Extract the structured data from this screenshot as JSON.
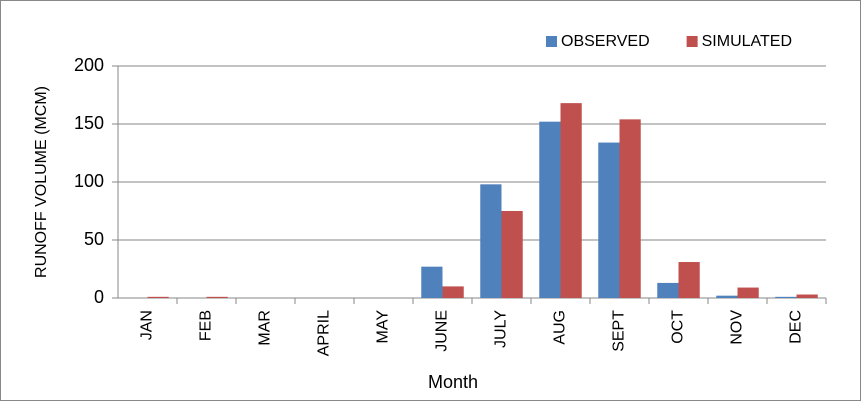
{
  "chart_data": {
    "type": "bar",
    "x_label": "Month",
    "y_label": "RUNOFF VOLUME (MCM)",
    "categories": [
      "JAN",
      "FEB",
      "MAR",
      "APRIL",
      "MAY",
      "JUNE",
      "JULY",
      "AUG",
      "SEPT",
      "OCT",
      "NOV",
      "DEC"
    ],
    "series": [
      {
        "name": "OBSERVED",
        "color": "#4f81bd",
        "values": [
          0,
          0,
          0,
          0,
          0,
          27,
          98,
          152,
          134,
          13,
          2,
          1
        ]
      },
      {
        "name": "SIMULATED",
        "color": "#c0504d",
        "values": [
          1,
          1,
          0,
          0,
          0,
          10,
          75,
          168,
          154,
          31,
          9,
          3
        ]
      }
    ],
    "ylim": [
      0,
      200
    ],
    "yticks": [
      0,
      50,
      100,
      150,
      200
    ],
    "grid": true,
    "legend": "top-right"
  }
}
